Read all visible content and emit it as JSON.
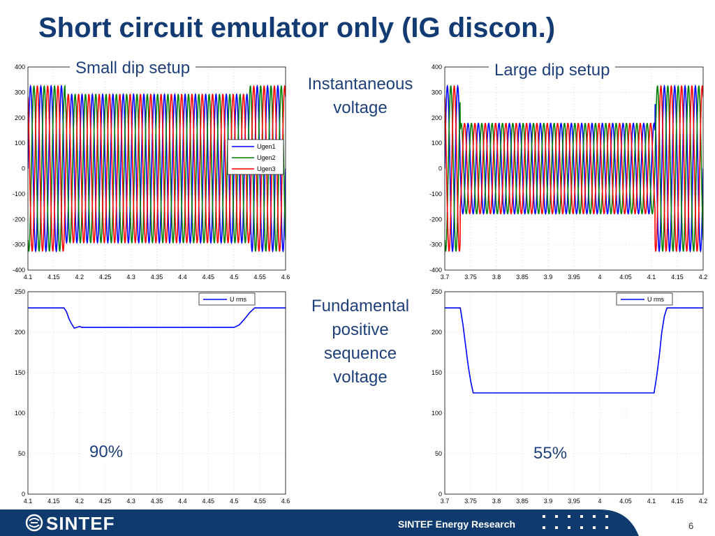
{
  "slide": {
    "title": "Short circuit emulator only (IG discon.)",
    "label_small_dip": "Small dip setup",
    "label_large_dip": "Large dip setup",
    "label_instantaneous": "Instantaneous voltage",
    "label_instantaneous_l1": "Instantaneous",
    "label_instantaneous_l2": "voltage",
    "label_fund_l1": "Fundamental",
    "label_fund_l2": "positive",
    "label_fund_l3": "sequence",
    "label_fund_l4": "voltage",
    "pct_small": "90%",
    "pct_large": "55%",
    "footer_org": "SINTEF Energy Research",
    "logo": "SINTEF",
    "page_number": "6"
  },
  "colors": {
    "title": "#123A73",
    "footer_bg": "#0E3A6E",
    "ugen1": "#0000FF",
    "ugen2": "#007F00",
    "ugen3": "#FF0000",
    "urms": "#0000FF"
  },
  "chart_data": [
    {
      "id": "inst-small",
      "type": "line",
      "xlim": [
        4.1,
        4.6
      ],
      "ylim": [
        -400,
        400
      ],
      "xticks": [
        "4.1",
        "4.15",
        "4.2",
        "4.25",
        "4.3",
        "4.35",
        "4.4",
        "4.45",
        "4.5",
        "4.55",
        "4.6"
      ],
      "yticks": [
        "400",
        "300",
        "200",
        "100",
        "0",
        "-100",
        "-200",
        "-300",
        "-400"
      ],
      "series": [
        {
          "name": "Ugen1",
          "color": "#0000FF",
          "phase_deg": 0
        },
        {
          "name": "Ugen2",
          "color": "#007F00",
          "phase_deg": -120
        },
        {
          "name": "Ugen3",
          "color": "#FF0000",
          "phase_deg": 120
        }
      ],
      "frequency_hz": 50,
      "amplitude_normal": 325,
      "amplitude_dip": 292,
      "dip_start": 4.172,
      "dip_end": 4.53,
      "legend_loc": "right-middle"
    },
    {
      "id": "inst-large",
      "type": "line",
      "xlim": [
        3.7,
        4.2
      ],
      "ylim": [
        -400,
        400
      ],
      "xticks": [
        "3.7",
        "3.75",
        "3.8",
        "3.85",
        "3.9",
        "3.95",
        "4",
        "4.05",
        "4.1",
        "4.15",
        "4.2"
      ],
      "yticks": [
        "400",
        "300",
        "200",
        "100",
        "0",
        "-100",
        "-200",
        "-300",
        "-400"
      ],
      "series": [
        {
          "name": "Ugen1",
          "color": "#0000FF",
          "phase_deg": 0
        },
        {
          "name": "Ugen2",
          "color": "#007F00",
          "phase_deg": -120
        },
        {
          "name": "Ugen3",
          "color": "#FF0000",
          "phase_deg": 120
        }
      ],
      "frequency_hz": 50,
      "amplitude_normal": 325,
      "amplitude_dip": 178,
      "dip_start": 3.73,
      "dip_end": 4.107
    },
    {
      "id": "rms-small",
      "type": "line",
      "xlim": [
        4.1,
        4.6
      ],
      "ylim": [
        0,
        250
      ],
      "xticks": [
        "4.1",
        "4.15",
        "4.2",
        "4.25",
        "4.3",
        "4.35",
        "4.4",
        "4.45",
        "4.5",
        "4.55",
        "4.6"
      ],
      "yticks": [
        "250",
        "200",
        "150",
        "100",
        "50",
        "0"
      ],
      "series": [
        {
          "name": "U rms",
          "color": "#0000FF",
          "x": [
            4.1,
            4.17,
            4.175,
            4.18,
            4.185,
            4.19,
            4.195,
            4.2,
            4.205,
            4.21,
            4.5,
            4.51,
            4.52,
            4.53,
            4.54,
            4.6
          ],
          "y": [
            230,
            230,
            225,
            216,
            210,
            205,
            206,
            207,
            206,
            206,
            206,
            209,
            216,
            224,
            230,
            230
          ]
        }
      ],
      "legend_loc": "top-right"
    },
    {
      "id": "rms-large",
      "type": "line",
      "xlim": [
        3.7,
        4.2
      ],
      "ylim": [
        0,
        250
      ],
      "xticks": [
        "3.7",
        "3.75",
        "3.8",
        "3.85",
        "3.9",
        "3.95",
        "4",
        "4.05",
        "4.1",
        "4.15",
        "4.2"
      ],
      "yticks": [
        "250",
        "200",
        "150",
        "100",
        "50",
        "0"
      ],
      "series": [
        {
          "name": "U rms",
          "color": "#0000FF",
          "x": [
            3.7,
            3.73,
            3.735,
            3.74,
            3.745,
            3.75,
            3.755,
            4.105,
            4.11,
            4.115,
            4.12,
            4.125,
            4.13,
            4.2
          ],
          "y": [
            230,
            230,
            210,
            185,
            160,
            140,
            125,
            125,
            145,
            170,
            200,
            220,
            230,
            230
          ]
        }
      ],
      "legend_loc": "top-right"
    }
  ]
}
